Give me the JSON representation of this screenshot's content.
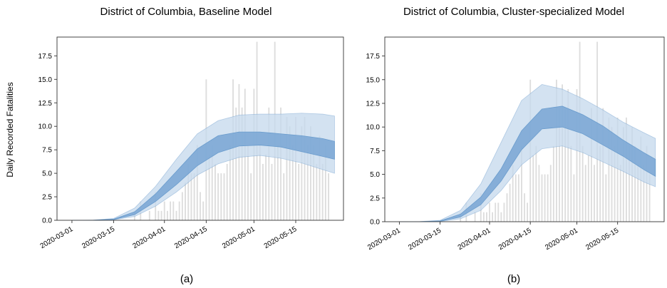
{
  "figure": {
    "ylabel": "Daily Recorded Fatalities",
    "x_tick_labels": [
      "2020-03-01",
      "2020-03-15",
      "2020-04-01",
      "2020-04-15",
      "2020-05-01",
      "2020-05-15"
    ],
    "y_tick_labels": [
      "0.0",
      "2.5",
      "5.0",
      "7.5",
      "10.0",
      "12.5",
      "15.0",
      "17.5"
    ]
  },
  "colors": {
    "bar": "#dddddd",
    "outer_band": "#c4d8ec",
    "inner_band": "#78a4d3",
    "band_edge": "#6a9ccd",
    "axis": "#333333"
  },
  "chart_data": [
    {
      "type": "area",
      "title": "District of Columbia, Baseline Model",
      "caption": "(a)",
      "xlabel": "",
      "ylabel": "Daily Recorded Fatalities",
      "x_ticks": [
        "2020-03-01",
        "2020-03-15",
        "2020-04-01",
        "2020-04-15",
        "2020-05-01",
        "2020-05-15"
      ],
      "ylim": [
        0,
        19.5
      ],
      "y_ticks": [
        0,
        2.5,
        5,
        7.5,
        10,
        12.5,
        15,
        17.5
      ],
      "xlim": [
        "2020-02-25",
        "2020-05-31"
      ],
      "grid": false,
      "observed_daily_fatalities": [
        [
          "2020-03-22",
          1
        ],
        [
          "2020-03-24",
          2
        ],
        [
          "2020-03-27",
          1
        ],
        [
          "2020-03-29",
          3
        ],
        [
          "2020-03-30",
          1
        ],
        [
          "2020-03-31",
          1
        ],
        [
          "2020-04-01",
          2
        ],
        [
          "2020-04-02",
          1
        ],
        [
          "2020-04-03",
          2
        ],
        [
          "2020-04-04",
          2
        ],
        [
          "2020-04-05",
          1
        ],
        [
          "2020-04-06",
          2
        ],
        [
          "2020-04-07",
          3
        ],
        [
          "2020-04-08",
          4
        ],
        [
          "2020-04-09",
          6
        ],
        [
          "2020-04-10",
          5
        ],
        [
          "2020-04-11",
          5
        ],
        [
          "2020-04-12",
          8
        ],
        [
          "2020-04-13",
          3
        ],
        [
          "2020-04-14",
          2
        ],
        [
          "2020-04-15",
          15
        ],
        [
          "2020-04-16",
          7
        ],
        [
          "2020-04-17",
          8
        ],
        [
          "2020-04-18",
          6
        ],
        [
          "2020-04-19",
          5
        ],
        [
          "2020-04-20",
          5
        ],
        [
          "2020-04-21",
          5
        ],
        [
          "2020-04-22",
          6
        ],
        [
          "2020-04-23",
          8
        ],
        [
          "2020-04-24",
          15
        ],
        [
          "2020-04-25",
          12
        ],
        [
          "2020-04-26",
          14.5
        ],
        [
          "2020-04-27",
          12
        ],
        [
          "2020-04-28",
          14
        ],
        [
          "2020-04-29",
          8
        ],
        [
          "2020-04-30",
          5
        ],
        [
          "2020-05-01",
          14
        ],
        [
          "2020-05-02",
          19
        ],
        [
          "2020-05-03",
          8
        ],
        [
          "2020-05-04",
          6
        ],
        [
          "2020-05-05",
          7
        ],
        [
          "2020-05-06",
          12
        ],
        [
          "2020-05-07",
          6
        ],
        [
          "2020-05-08",
          19
        ],
        [
          "2020-05-09",
          8
        ],
        [
          "2020-05-10",
          12
        ],
        [
          "2020-05-11",
          5
        ],
        [
          "2020-05-12",
          11
        ],
        [
          "2020-05-13",
          10
        ],
        [
          "2020-05-14",
          8
        ],
        [
          "2020-05-15",
          11
        ],
        [
          "2020-05-16",
          6
        ],
        [
          "2020-05-17",
          10
        ],
        [
          "2020-05-18",
          11
        ],
        [
          "2020-05-19",
          8
        ],
        [
          "2020-05-20",
          10
        ],
        [
          "2020-05-21",
          8
        ],
        [
          "2020-05-22",
          6
        ],
        [
          "2020-05-23",
          9
        ],
        [
          "2020-05-24",
          6
        ],
        [
          "2020-05-25",
          8
        ],
        [
          "2020-05-26",
          5
        ]
      ],
      "band_x": [
        "2020-03-01",
        "2020-03-08",
        "2020-03-15",
        "2020-03-22",
        "2020-03-29",
        "2020-04-05",
        "2020-04-12",
        "2020-04-19",
        "2020-04-26",
        "2020-05-03",
        "2020-05-10",
        "2020-05-17",
        "2020-05-24",
        "2020-05-28"
      ],
      "outer_band_lower": [
        0,
        0,
        0.05,
        0.4,
        1.5,
        3.0,
        4.8,
        6.0,
        6.7,
        6.9,
        6.6,
        6.1,
        5.4,
        5.0
      ],
      "outer_band_upper": [
        0,
        0.02,
        0.2,
        1.3,
        3.6,
        6.5,
        9.2,
        10.6,
        11.2,
        11.3,
        11.3,
        11.4,
        11.3,
        11.1
      ],
      "inner_band_lower": [
        0,
        0.01,
        0.08,
        0.6,
        2.0,
        3.8,
        5.8,
        7.2,
        7.9,
        8.0,
        7.8,
        7.3,
        6.8,
        6.5
      ],
      "inner_band_upper": [
        0,
        0.01,
        0.12,
        0.9,
        2.8,
        5.2,
        7.6,
        9.0,
        9.4,
        9.4,
        9.2,
        9.0,
        8.7,
        8.4
      ]
    },
    {
      "type": "area",
      "title": "District of Columbia, Cluster-specialized Model",
      "caption": "(b)",
      "xlabel": "",
      "ylabel": "",
      "x_ticks": [
        "2020-03-01",
        "2020-03-15",
        "2020-04-01",
        "2020-04-15",
        "2020-05-01",
        "2020-05-15"
      ],
      "ylim": [
        0,
        19.5
      ],
      "y_ticks": [
        0,
        2.5,
        5,
        7.5,
        10,
        12.5,
        15,
        17.5
      ],
      "xlim": [
        "2020-02-25",
        "2020-05-31"
      ],
      "grid": false,
      "observed_daily_fatalities": [
        [
          "2020-03-22",
          1
        ],
        [
          "2020-03-24",
          2
        ],
        [
          "2020-03-27",
          1
        ],
        [
          "2020-03-29",
          3
        ],
        [
          "2020-03-30",
          1
        ],
        [
          "2020-03-31",
          1
        ],
        [
          "2020-04-01",
          2
        ],
        [
          "2020-04-02",
          1
        ],
        [
          "2020-04-03",
          2
        ],
        [
          "2020-04-04",
          2
        ],
        [
          "2020-04-05",
          1
        ],
        [
          "2020-04-06",
          2
        ],
        [
          "2020-04-07",
          3
        ],
        [
          "2020-04-08",
          4
        ],
        [
          "2020-04-09",
          6
        ],
        [
          "2020-04-10",
          5
        ],
        [
          "2020-04-11",
          5
        ],
        [
          "2020-04-12",
          8
        ],
        [
          "2020-04-13",
          3
        ],
        [
          "2020-04-14",
          2
        ],
        [
          "2020-04-15",
          15
        ],
        [
          "2020-04-16",
          7
        ],
        [
          "2020-04-17",
          8
        ],
        [
          "2020-04-18",
          6
        ],
        [
          "2020-04-19",
          5
        ],
        [
          "2020-04-20",
          5
        ],
        [
          "2020-04-21",
          5
        ],
        [
          "2020-04-22",
          6
        ],
        [
          "2020-04-23",
          8
        ],
        [
          "2020-04-24",
          15
        ],
        [
          "2020-04-25",
          12
        ],
        [
          "2020-04-26",
          14.5
        ],
        [
          "2020-04-27",
          12
        ],
        [
          "2020-04-28",
          14
        ],
        [
          "2020-04-29",
          8
        ],
        [
          "2020-04-30",
          5
        ],
        [
          "2020-05-01",
          14
        ],
        [
          "2020-05-02",
          19
        ],
        [
          "2020-05-03",
          8
        ],
        [
          "2020-05-04",
          6
        ],
        [
          "2020-05-05",
          7
        ],
        [
          "2020-05-06",
          12
        ],
        [
          "2020-05-07",
          6
        ],
        [
          "2020-05-08",
          19
        ],
        [
          "2020-05-09",
          8
        ],
        [
          "2020-05-10",
          12
        ],
        [
          "2020-05-11",
          5
        ],
        [
          "2020-05-12",
          11
        ],
        [
          "2020-05-13",
          10
        ],
        [
          "2020-05-14",
          8
        ],
        [
          "2020-05-15",
          11
        ],
        [
          "2020-05-16",
          6
        ],
        [
          "2020-05-17",
          10
        ],
        [
          "2020-05-18",
          11
        ],
        [
          "2020-05-19",
          8
        ],
        [
          "2020-05-20",
          10
        ],
        [
          "2020-05-21",
          8
        ],
        [
          "2020-05-22",
          6
        ],
        [
          "2020-05-23",
          9
        ],
        [
          "2020-05-24",
          6
        ],
        [
          "2020-05-25",
          8
        ],
        [
          "2020-05-26",
          5
        ]
      ],
      "band_x": [
        "2020-03-01",
        "2020-03-08",
        "2020-03-15",
        "2020-03-22",
        "2020-03-29",
        "2020-04-05",
        "2020-04-12",
        "2020-04-19",
        "2020-04-26",
        "2020-05-03",
        "2020-05-10",
        "2020-05-17",
        "2020-05-24",
        "2020-05-28"
      ],
      "outer_band_lower": [
        0,
        0,
        0.03,
        0.3,
        1.2,
        3.3,
        6.0,
        7.7,
        8.0,
        7.3,
        6.3,
        5.3,
        4.2,
        3.7
      ],
      "outer_band_upper": [
        0,
        0.02,
        0.15,
        1.2,
        4.0,
        8.4,
        12.8,
        14.5,
        14.0,
        13.0,
        11.8,
        10.5,
        9.4,
        8.8
      ],
      "inner_band_lower": [
        0,
        0.01,
        0.05,
        0.5,
        1.8,
        4.3,
        7.6,
        9.8,
        10.0,
        9.3,
        8.1,
        6.9,
        5.5,
        4.8
      ],
      "inner_band_upper": [
        0,
        0.01,
        0.08,
        0.8,
        2.6,
        5.6,
        9.6,
        11.9,
        12.2,
        11.3,
        10.1,
        8.6,
        7.3,
        6.6
      ]
    }
  ]
}
